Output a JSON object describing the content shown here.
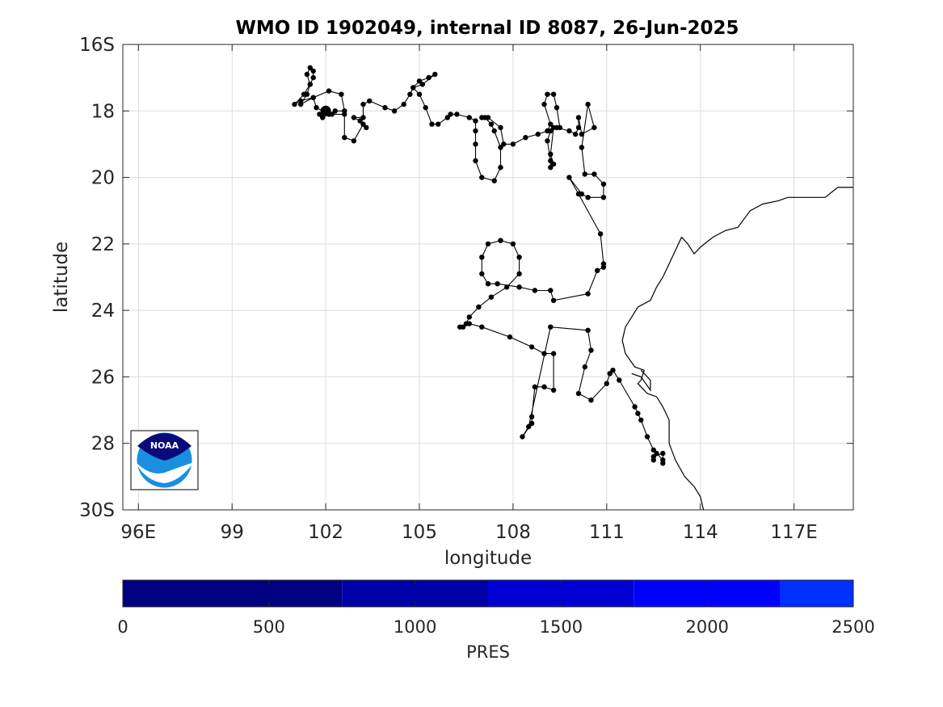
{
  "title": "WMO ID 1902049, internal ID 8087, 26-Jun-2025",
  "map": {
    "xlabel": "longitude",
    "ylabel": "latitude",
    "xlim": [
      95.5,
      118.9
    ],
    "ylim": [
      16,
      30
    ],
    "xticks": [
      {
        "value": 96,
        "label": "96E"
      },
      {
        "value": 99,
        "label": "99"
      },
      {
        "value": 102,
        "label": "102"
      },
      {
        "value": 105,
        "label": "105"
      },
      {
        "value": 108,
        "label": "108"
      },
      {
        "value": 111,
        "label": "111"
      },
      {
        "value": 114,
        "label": "114"
      },
      {
        "value": 117,
        "label": "117E"
      }
    ],
    "yticks": [
      {
        "value": 16,
        "label": "16S"
      },
      {
        "value": 18,
        "label": "18"
      },
      {
        "value": 20,
        "label": "20"
      },
      {
        "value": 22,
        "label": "22"
      },
      {
        "value": 24,
        "label": "24"
      },
      {
        "value": 26,
        "label": "26"
      },
      {
        "value": 28,
        "label": "28"
      },
      {
        "value": 30,
        "label": "30S"
      }
    ],
    "grid": true,
    "track_color": "#000000",
    "coast_color": "#000000",
    "track": [
      [
        102.0,
        18.0
      ],
      [
        101.8,
        18.1
      ],
      [
        101.9,
        18.2
      ],
      [
        102.1,
        18.1
      ],
      [
        101.7,
        17.9
      ],
      [
        101.6,
        17.6
      ],
      [
        101.2,
        17.7
      ],
      [
        101.0,
        17.8
      ],
      [
        101.3,
        17.5
      ],
      [
        101.5,
        17.2
      ],
      [
        101.4,
        16.9
      ],
      [
        101.5,
        16.7
      ],
      [
        101.6,
        16.8
      ],
      [
        101.6,
        17.0
      ],
      [
        101.5,
        17.2
      ],
      [
        101.4,
        17.5
      ],
      [
        101.2,
        17.8
      ],
      [
        101.6,
        17.6
      ],
      [
        102.1,
        17.4
      ],
      [
        102.5,
        17.5
      ],
      [
        102.6,
        18.0
      ],
      [
        102.3,
        18.0
      ],
      [
        102.2,
        18.1
      ],
      [
        102.6,
        18.1
      ],
      [
        102.6,
        18.8
      ],
      [
        102.9,
        18.9
      ],
      [
        103.2,
        18.4
      ],
      [
        103.3,
        18.5
      ],
      [
        103.1,
        18.3
      ],
      [
        102.9,
        18.2
      ],
      [
        103.2,
        18.2
      ],
      [
        103.2,
        17.8
      ],
      [
        103.4,
        17.7
      ],
      [
        103.9,
        17.9
      ],
      [
        104.2,
        18.0
      ],
      [
        104.5,
        17.8
      ],
      [
        104.7,
        17.5
      ],
      [
        104.8,
        17.3
      ],
      [
        105.0,
        17.1
      ],
      [
        105.3,
        17.0
      ],
      [
        105.5,
        16.9
      ],
      [
        105.1,
        17.2
      ],
      [
        104.8,
        17.3
      ],
      [
        105.0,
        17.5
      ],
      [
        105.2,
        17.9
      ],
      [
        105.4,
        18.4
      ],
      [
        105.6,
        18.4
      ],
      [
        105.9,
        18.2
      ],
      [
        106.0,
        18.1
      ],
      [
        106.2,
        18.1
      ],
      [
        106.6,
        18.2
      ],
      [
        106.8,
        18.3
      ],
      [
        106.8,
        18.6
      ],
      [
        106.8,
        19.0
      ],
      [
        106.8,
        19.5
      ],
      [
        107.0,
        20.0
      ],
      [
        107.4,
        20.1
      ],
      [
        107.6,
        19.7
      ],
      [
        107.6,
        19.1
      ],
      [
        107.4,
        18.6
      ],
      [
        107.3,
        18.4
      ],
      [
        107.1,
        18.2
      ],
      [
        107.0,
        18.2
      ],
      [
        107.2,
        18.2
      ],
      [
        107.6,
        18.5
      ],
      [
        107.7,
        19.0
      ],
      [
        108.0,
        19.0
      ],
      [
        108.4,
        18.8
      ],
      [
        108.8,
        18.7
      ],
      [
        109.1,
        18.6
      ],
      [
        109.2,
        18.4
      ],
      [
        109.0,
        17.8
      ],
      [
        109.1,
        17.5
      ],
      [
        109.3,
        17.5
      ],
      [
        109.4,
        17.9
      ],
      [
        109.5,
        18.5
      ],
      [
        109.3,
        18.5
      ],
      [
        109.2,
        19.3
      ],
      [
        109.3,
        19.6
      ],
      [
        109.2,
        19.7
      ],
      [
        109.2,
        19.5
      ],
      [
        109.1,
        18.9
      ],
      [
        109.2,
        18.6
      ],
      [
        109.4,
        18.5
      ],
      [
        109.8,
        18.6
      ],
      [
        110.0,
        18.7
      ],
      [
        110.1,
        18.5
      ],
      [
        110.1,
        18.2
      ],
      [
        110.2,
        18.7
      ],
      [
        110.6,
        18.5
      ],
      [
        110.4,
        17.8
      ],
      [
        110.2,
        19.1
      ],
      [
        110.3,
        19.9
      ],
      [
        110.6,
        19.9
      ],
      [
        110.9,
        20.2
      ],
      [
        110.9,
        20.6
      ],
      [
        110.4,
        20.6
      ],
      [
        110.2,
        20.5
      ],
      [
        109.8,
        20.0
      ],
      [
        110.1,
        20.5
      ],
      [
        110.8,
        21.7
      ],
      [
        110.9,
        22.6
      ],
      [
        110.9,
        22.7
      ],
      [
        110.7,
        22.8
      ],
      [
        110.4,
        23.5
      ],
      [
        109.3,
        23.7
      ],
      [
        109.2,
        23.4
      ],
      [
        108.7,
        23.4
      ],
      [
        108.2,
        23.3
      ],
      [
        107.5,
        23.2
      ],
      [
        107.2,
        23.2
      ],
      [
        107.0,
        22.9
      ],
      [
        107.0,
        22.4
      ],
      [
        107.2,
        22.0
      ],
      [
        107.6,
        21.9
      ],
      [
        108.0,
        22.0
      ],
      [
        108.2,
        22.4
      ],
      [
        108.2,
        22.9
      ],
      [
        107.8,
        23.3
      ],
      [
        107.3,
        23.6
      ],
      [
        106.9,
        23.9
      ],
      [
        106.6,
        24.2
      ],
      [
        106.5,
        24.4
      ],
      [
        106.4,
        24.5
      ],
      [
        106.3,
        24.5
      ],
      [
        106.6,
        24.4
      ],
      [
        107.0,
        24.5
      ],
      [
        107.9,
        24.8
      ],
      [
        108.6,
        25.1
      ],
      [
        109.0,
        25.3
      ],
      [
        109.3,
        25.3
      ],
      [
        109.3,
        26.4
      ],
      [
        109.0,
        26.3
      ],
      [
        108.7,
        26.3
      ],
      [
        108.6,
        27.2
      ],
      [
        108.6,
        27.4
      ],
      [
        108.3,
        27.8
      ],
      [
        108.5,
        27.5
      ],
      [
        109.2,
        24.5
      ],
      [
        110.4,
        24.6
      ],
      [
        110.5,
        25.2
      ],
      [
        110.3,
        25.7
      ],
      [
        110.1,
        26.5
      ],
      [
        110.5,
        26.7
      ],
      [
        111.0,
        26.2
      ],
      [
        111.1,
        25.9
      ],
      [
        111.2,
        25.8
      ],
      [
        111.4,
        26.1
      ],
      [
        111.9,
        26.9
      ],
      [
        112.0,
        27.1
      ],
      [
        112.1,
        27.3
      ],
      [
        112.3,
        27.8
      ],
      [
        112.5,
        28.2
      ],
      [
        112.6,
        28.3
      ],
      [
        112.8,
        28.5
      ],
      [
        112.8,
        28.6
      ],
      [
        112.8,
        28.3
      ],
      [
        112.5,
        28.4
      ],
      [
        112.5,
        28.5
      ]
    ],
    "coast": [
      [
        118.9,
        20.3
      ],
      [
        118.4,
        20.3
      ],
      [
        118.0,
        20.6
      ],
      [
        117.2,
        20.6
      ],
      [
        116.8,
        20.6
      ],
      [
        116.5,
        20.7
      ],
      [
        116.0,
        20.8
      ],
      [
        115.6,
        21.0
      ],
      [
        115.2,
        21.5
      ],
      [
        114.8,
        21.6
      ],
      [
        114.4,
        21.8
      ],
      [
        114.0,
        22.1
      ],
      [
        113.8,
        22.3
      ],
      [
        113.6,
        22.0
      ],
      [
        113.4,
        21.8
      ],
      [
        113.0,
        22.6
      ],
      [
        112.8,
        23.0
      ],
      [
        112.6,
        23.3
      ],
      [
        112.4,
        23.7
      ],
      [
        112.0,
        23.9
      ],
      [
        111.8,
        24.2
      ],
      [
        111.6,
        24.5
      ],
      [
        111.5,
        24.9
      ],
      [
        111.6,
        25.3
      ],
      [
        111.9,
        25.7
      ],
      [
        112.2,
        25.8
      ],
      [
        112.1,
        26.1
      ],
      [
        112.0,
        26.2
      ],
      [
        112.3,
        26.5
      ],
      [
        112.6,
        26.6
      ],
      [
        112.8,
        26.9
      ],
      [
        113.0,
        27.3
      ],
      [
        113.0,
        28.0
      ],
      [
        113.2,
        28.5
      ],
      [
        113.5,
        29.0
      ],
      [
        113.8,
        29.3
      ],
      [
        114.0,
        29.6
      ],
      [
        114.1,
        30.0
      ]
    ],
    "coast_inner": [
      [
        112.1,
        25.8
      ],
      [
        112.4,
        26.1
      ],
      [
        112.4,
        26.4
      ],
      [
        112.1,
        26.0
      ],
      [
        111.8,
        25.9
      ]
    ],
    "logo_text": "NOAA"
  },
  "colorbar": {
    "label": "PRES",
    "min": 0,
    "max": 2500,
    "ticks": [
      {
        "value": 0,
        "label": "0"
      },
      {
        "value": 500,
        "label": "500"
      },
      {
        "value": 1000,
        "label": "1000"
      },
      {
        "value": 1500,
        "label": "1500"
      },
      {
        "value": 2000,
        "label": "2000"
      },
      {
        "value": 2500,
        "label": "2500"
      }
    ],
    "segments": [
      {
        "from": 0,
        "to": 750,
        "color": "#000080"
      },
      {
        "from": 750,
        "to": 1250,
        "color": "#0000a8"
      },
      {
        "from": 1250,
        "to": 1750,
        "color": "#0000d4"
      },
      {
        "from": 1750,
        "to": 2250,
        "color": "#0000ff"
      },
      {
        "from": 2250,
        "to": 2500,
        "color": "#0030ff"
      }
    ]
  }
}
